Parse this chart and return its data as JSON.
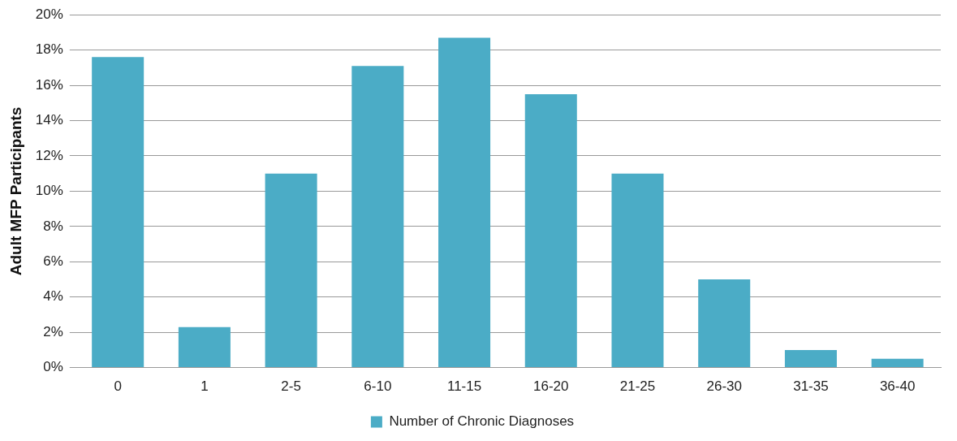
{
  "chart_data": {
    "type": "bar",
    "ylabel": "Adult MFP Participants",
    "categories": [
      "0",
      "1",
      "2-5",
      "6-10",
      "11-15",
      "16-20",
      "21-25",
      "26-30",
      "31-35",
      "36-40"
    ],
    "series": [
      {
        "name": "Number of Chronic Diagnoses",
        "color": "#4bacc6",
        "values": [
          17.6,
          2.3,
          11.0,
          17.1,
          18.7,
          15.5,
          11.0,
          5.0,
          1.0,
          0.5
        ]
      }
    ],
    "ylim": [
      0,
      20
    ],
    "yticks": [
      {
        "value": 0,
        "label": "0%"
      },
      {
        "value": 2,
        "label": "2%"
      },
      {
        "value": 4,
        "label": "4%"
      },
      {
        "value": 6,
        "label": "6%"
      },
      {
        "value": 8,
        "label": "8%"
      },
      {
        "value": 10,
        "label": "10%"
      },
      {
        "value": 12,
        "label": "12%"
      },
      {
        "value": 14,
        "label": "14%"
      },
      {
        "value": 16,
        "label": "16%"
      },
      {
        "value": 18,
        "label": "18%"
      },
      {
        "value": 20,
        "label": "20%"
      }
    ],
    "grid": "y",
    "legend": "bottom"
  }
}
